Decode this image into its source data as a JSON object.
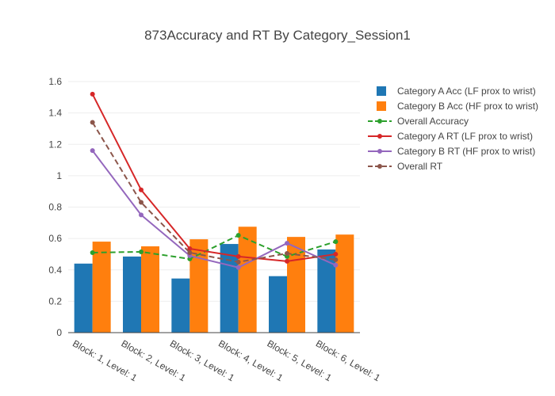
{
  "chart_data": {
    "type": "bar",
    "title": "873Accuracy and RT By Category_Session1",
    "categories": [
      "Block: 1, Level: 1",
      "Block: 2, Level: 1",
      "Block: 3, Level: 1",
      "Block: 4, Level: 1",
      "Block: 5, Level: 1",
      "Block: 6, Level: 1"
    ],
    "ylim": [
      0,
      1.6
    ],
    "y_ticks": [
      0,
      0.2,
      0.4,
      0.6,
      0.8,
      1,
      1.2,
      1.4,
      1.6
    ],
    "y_tick_labels": [
      "0",
      "0.2",
      "0.4",
      "0.6",
      "0.8",
      "1",
      "1.2",
      "1.4",
      "1.6"
    ],
    "grid": true,
    "legend_position": "top-right",
    "series": [
      {
        "name": "Category A Acc (LF prox to wrist)",
        "kind": "bar",
        "color": "#1f77b4",
        "values": [
          0.44,
          0.485,
          0.345,
          0.565,
          0.36,
          0.53
        ]
      },
      {
        "name": "Category B Acc (HF prox to wrist)",
        "kind": "bar",
        "color": "#ff7f0e",
        "values": [
          0.58,
          0.55,
          0.595,
          0.675,
          0.61,
          0.625
        ]
      },
      {
        "name": "Overall Accuracy",
        "kind": "line",
        "style": "dash",
        "color": "#2ca02c",
        "values": [
          0.51,
          0.515,
          0.47,
          0.62,
          0.485,
          0.58
        ]
      },
      {
        "name": "Category A RT (LF prox to wrist)",
        "kind": "line",
        "style": "solid",
        "color": "#d62728",
        "values": [
          1.52,
          0.91,
          0.535,
          0.485,
          0.455,
          0.5
        ]
      },
      {
        "name": "Category B RT (HF prox to wrist)",
        "kind": "line",
        "style": "solid",
        "color": "#9467bd",
        "values": [
          1.16,
          0.75,
          0.49,
          0.415,
          0.57,
          0.43
        ]
      },
      {
        "name": "Overall RT",
        "kind": "line",
        "style": "dash",
        "color": "#8c564b",
        "values": [
          1.34,
          0.83,
          0.51,
          0.45,
          0.505,
          0.465
        ]
      }
    ]
  }
}
